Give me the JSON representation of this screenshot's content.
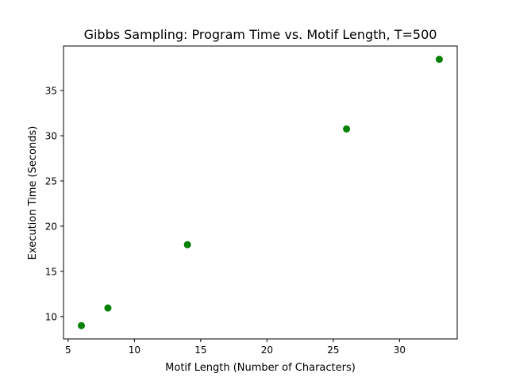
{
  "chart_data": {
    "type": "scatter",
    "title": "Gibbs Sampling: Program Time vs. Motif Length, T=500",
    "xlabel": "Motif Length (Number of Characters)",
    "ylabel": "Execution Time (Seconds)",
    "x": [
      6,
      8,
      14,
      26,
      33
    ],
    "y": [
      9.0,
      10.95,
      17.95,
      30.75,
      38.45
    ],
    "xlim": [
      4.65,
      34.35
    ],
    "ylim": [
      7.53,
      39.92
    ],
    "xticks": [
      5,
      10,
      15,
      20,
      25,
      30
    ],
    "yticks": [
      10,
      15,
      20,
      25,
      30,
      35
    ],
    "marker_color": "#008000",
    "grid": false
  }
}
